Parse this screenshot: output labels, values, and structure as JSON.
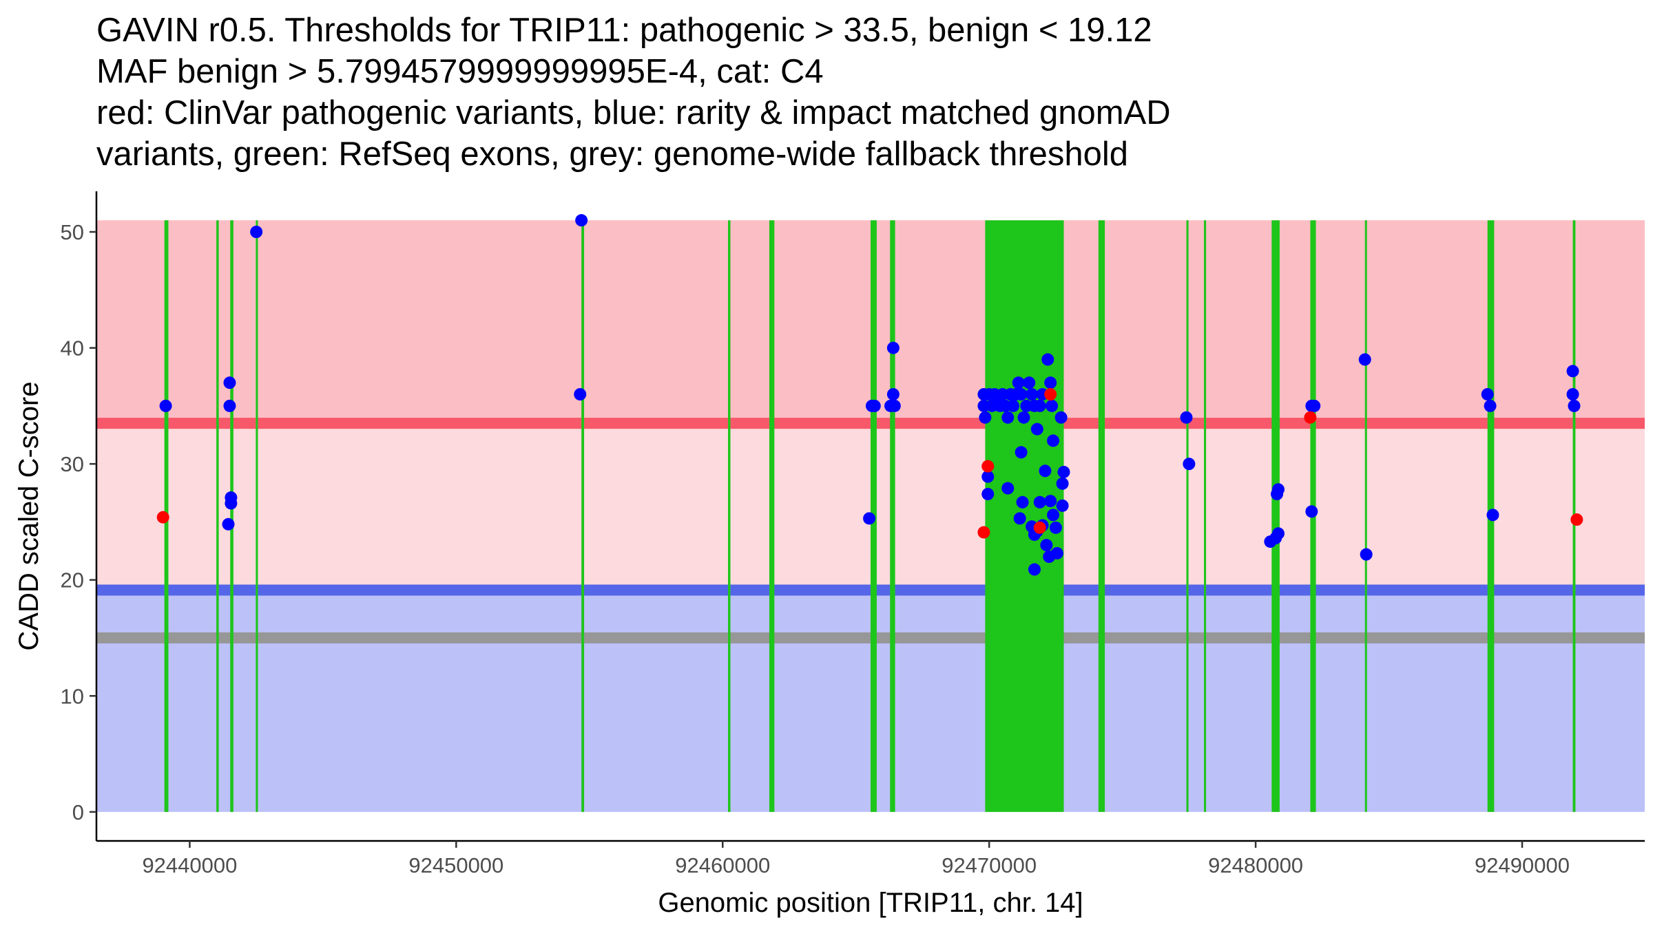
{
  "title_lines": [
    "GAVIN r0.5. Thresholds for TRIP11: pathogenic > 33.5, benign < 19.12",
    "MAF benign > 5.7994579999999995E-4, cat: C4",
    "red: ClinVar pathogenic variants, blue: rarity & impact matched gnomAD",
    "variants, green: RefSeq exons, grey: genome-wide fallback threshold"
  ],
  "chart_data": {
    "type": "scatter",
    "title": "GAVIN r0.5. Thresholds for TRIP11: pathogenic > 33.5, benign < 19.12",
    "xlabel": "Genomic position [TRIP11, chr. 14]",
    "ylabel": "CADD scaled C-score",
    "xlim": [
      92436500,
      92494600
    ],
    "ylim": [
      -2.5,
      53.5
    ],
    "x_ticks": [
      92440000,
      92450000,
      92460000,
      92470000,
      92480000,
      92490000
    ],
    "x_tick_labels": [
      "92440000",
      "92450000",
      "92460000",
      "92470000",
      "92480000",
      "92490000"
    ],
    "y_ticks": [
      0,
      10,
      20,
      30,
      40,
      50
    ],
    "y_tick_labels": [
      "0",
      "10",
      "20",
      "30",
      "40",
      "50"
    ],
    "shaded_regions": [
      {
        "name": "pathogenic zone",
        "y0": 33.5,
        "y1": 51,
        "color": "#fbbec4"
      },
      {
        "name": "uncertain zone",
        "y0": 19.12,
        "y1": 33.5,
        "color": "#fcdadd"
      },
      {
        "name": "benign zone",
        "y0": 0,
        "y1": 19.12,
        "color": "#bcc1f8"
      }
    ],
    "threshold_lines": [
      {
        "name": "pathogenic threshold",
        "y": 33.5,
        "color": "#f7586a"
      },
      {
        "name": "benign threshold",
        "y": 19.12,
        "color": "#5566e8"
      },
      {
        "name": "genome-wide fallback threshold",
        "y": 15,
        "color": "#979797"
      }
    ],
    "exons": {
      "color": "#1ec51a",
      "y_top": 51,
      "ranges": [
        [
          92439050,
          92439200
        ],
        [
          92441000,
          92441090
        ],
        [
          92441520,
          92441640
        ],
        [
          92442480,
          92442560
        ],
        [
          92454700,
          92454800
        ],
        [
          92460200,
          92460290
        ],
        [
          92461750,
          92461940
        ],
        [
          92465550,
          92465780
        ],
        [
          92466280,
          92466470
        ],
        [
          92469850,
          92472800
        ],
        [
          92474100,
          92474340
        ],
        [
          92477400,
          92477480
        ],
        [
          92478060,
          92478140
        ],
        [
          92480600,
          92480900
        ],
        [
          92482050,
          92482260
        ],
        [
          92484100,
          92484170
        ],
        [
          92488700,
          92488950
        ],
        [
          92491900,
          92492000
        ]
      ]
    },
    "series": [
      {
        "name": "ClinVar pathogenic variants",
        "color": "#ff0000",
        "points": [
          [
            92439000,
            25.4
          ],
          [
            92469800,
            24.1
          ],
          [
            92469950,
            29.8
          ],
          [
            92471900,
            24.5
          ],
          [
            92472300,
            36
          ],
          [
            92482050,
            34
          ],
          [
            92492050,
            25.2
          ]
        ]
      },
      {
        "name": "rarity & impact matched gnomAD variants",
        "color": "#0000ff",
        "points": [
          [
            92439100,
            35
          ],
          [
            92441500,
            37
          ],
          [
            92441500,
            35
          ],
          [
            92441550,
            27.1
          ],
          [
            92441550,
            26.6
          ],
          [
            92441450,
            24.8
          ],
          [
            92442500,
            50
          ],
          [
            92454700,
            51
          ],
          [
            92454650,
            36
          ],
          [
            92465600,
            35
          ],
          [
            92465700,
            35
          ],
          [
            92465500,
            25.3
          ],
          [
            92466400,
            40
          ],
          [
            92466400,
            36
          ],
          [
            92466300,
            35
          ],
          [
            92466450,
            35
          ],
          [
            92469800,
            36
          ],
          [
            92469800,
            35
          ],
          [
            92469850,
            34
          ],
          [
            92470000,
            36
          ],
          [
            92470100,
            35
          ],
          [
            92470200,
            36
          ],
          [
            92470300,
            35.5
          ],
          [
            92470400,
            35
          ],
          [
            92470500,
            36
          ],
          [
            92470600,
            35
          ],
          [
            92470700,
            34
          ],
          [
            92470800,
            36
          ],
          [
            92470900,
            35
          ],
          [
            92471000,
            36
          ],
          [
            92471100,
            37
          ],
          [
            92471200,
            36
          ],
          [
            92471300,
            34
          ],
          [
            92471400,
            35
          ],
          [
            92471500,
            37
          ],
          [
            92471600,
            36
          ],
          [
            92471700,
            35
          ],
          [
            92471800,
            33
          ],
          [
            92471900,
            35
          ],
          [
            92472000,
            36
          ],
          [
            92472200,
            39
          ],
          [
            92472300,
            37
          ],
          [
            92472350,
            35
          ],
          [
            92472400,
            32
          ],
          [
            92472700,
            34
          ],
          [
            92472800,
            29.3
          ],
          [
            92472750,
            28.3
          ],
          [
            92469950,
            28.9
          ],
          [
            92469950,
            27.4
          ],
          [
            92470700,
            27.9
          ],
          [
            92471200,
            31
          ],
          [
            92471250,
            26.7
          ],
          [
            92471150,
            25.3
          ],
          [
            92471900,
            26.7
          ],
          [
            92472100,
            29.4
          ],
          [
            92472300,
            26.8
          ],
          [
            92472400,
            25.6
          ],
          [
            92472500,
            24.5
          ],
          [
            92472750,
            26.4
          ],
          [
            92471600,
            24.6
          ],
          [
            92471700,
            24.3
          ],
          [
            92472000,
            24.7
          ],
          [
            92471800,
            24.2
          ],
          [
            92471700,
            23.9
          ],
          [
            92472150,
            23
          ],
          [
            92472550,
            22.3
          ],
          [
            92472250,
            22
          ],
          [
            92471700,
            20.9
          ],
          [
            92477400,
            34
          ],
          [
            92477500,
            30
          ],
          [
            92480550,
            23.3
          ],
          [
            92480750,
            23.6
          ],
          [
            92480850,
            24
          ],
          [
            92480850,
            27.8
          ],
          [
            92480800,
            27.4
          ],
          [
            92482100,
            35
          ],
          [
            92482200,
            35
          ],
          [
            92482100,
            25.9
          ],
          [
            92484100,
            39
          ],
          [
            92484150,
            22.2
          ],
          [
            92488700,
            36
          ],
          [
            92488800,
            35
          ],
          [
            92488900,
            25.6
          ],
          [
            92491900,
            38
          ],
          [
            92491900,
            36
          ],
          [
            92491950,
            35
          ]
        ]
      }
    ]
  }
}
